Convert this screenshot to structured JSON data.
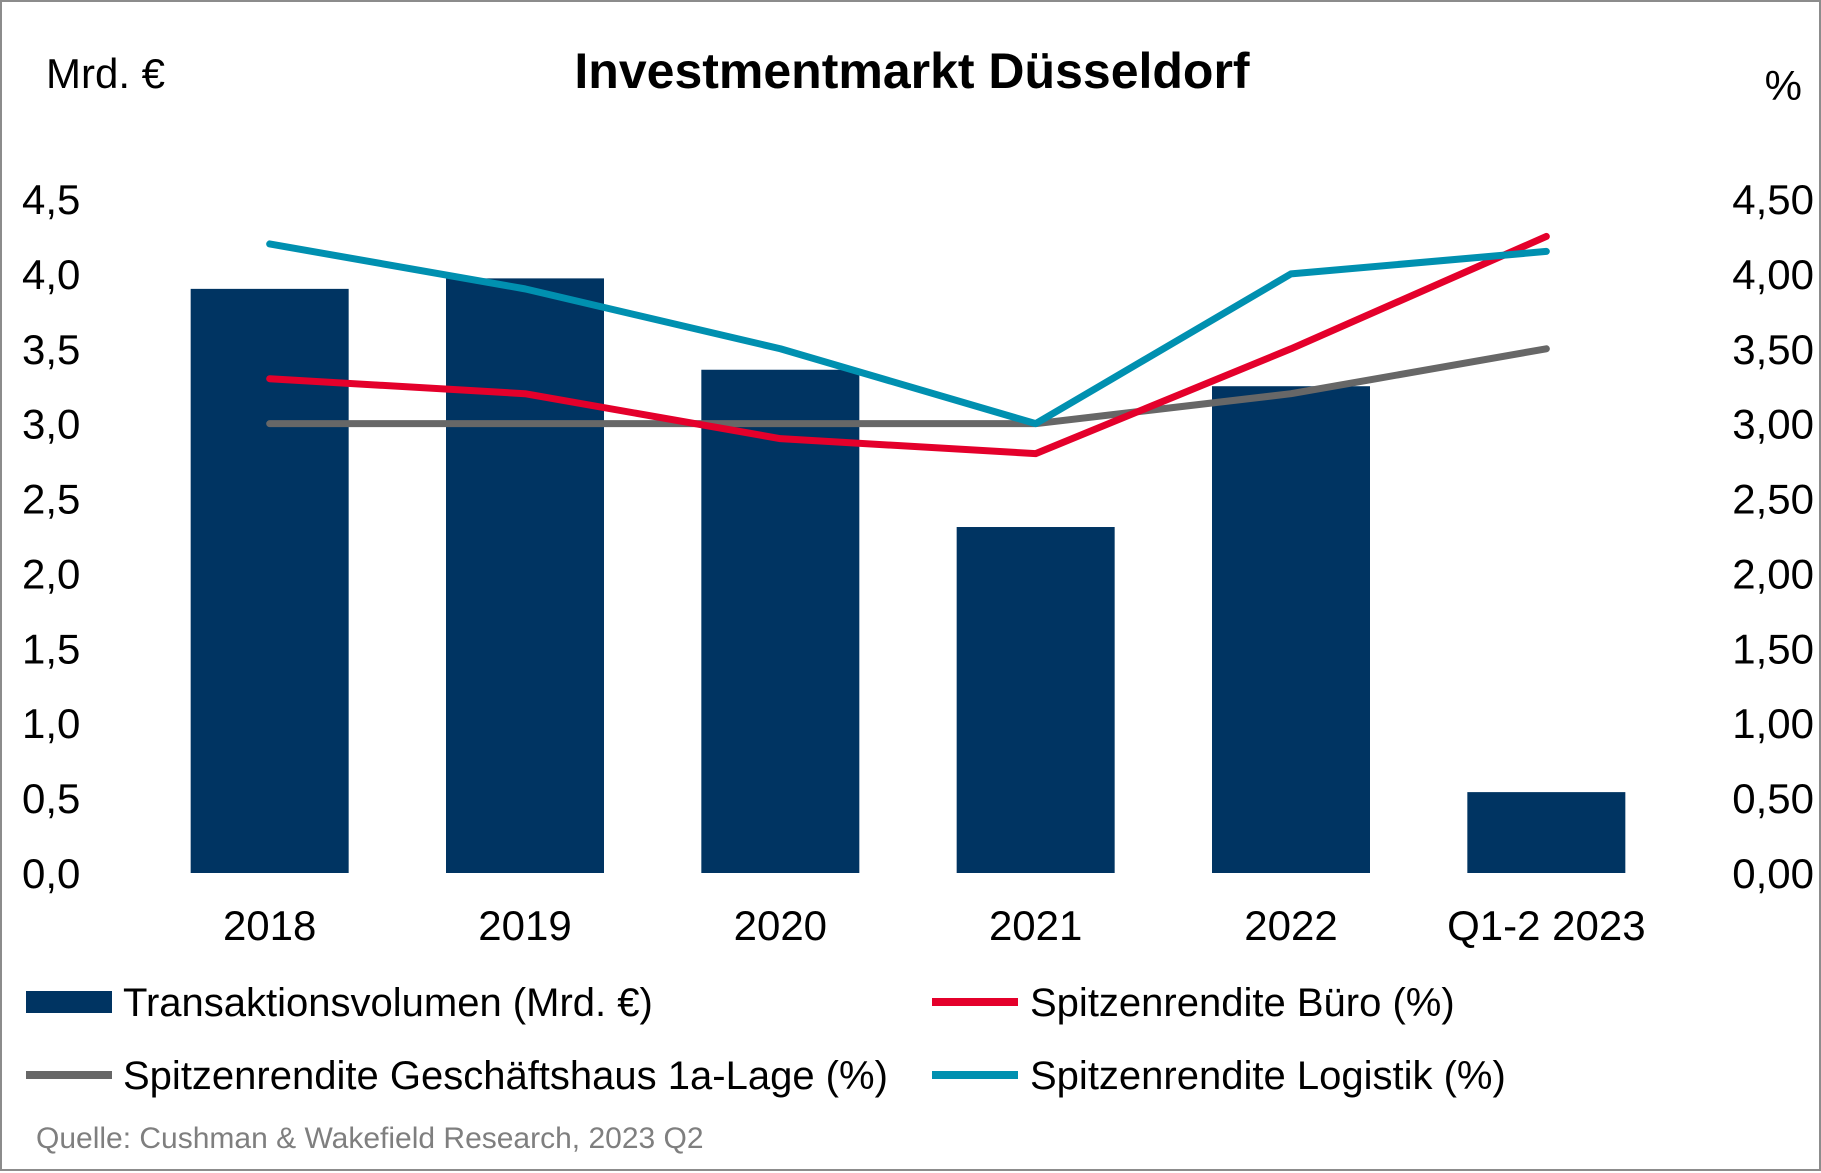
{
  "chart_data": {
    "type": "bar",
    "title": "Investmentmarkt Düsseldorf",
    "y_left_unit": "Mrd. €",
    "y_right_unit": "%",
    "categories": [
      "2018",
      "2019",
      "2020",
      "2021",
      "2022",
      "Q1-2 2023"
    ],
    "y_left_ticks": [
      "0,0",
      "0,5",
      "1,0",
      "1,5",
      "2,0",
      "2,5",
      "3,0",
      "3,5",
      "4,0",
      "4,5"
    ],
    "y_right_ticks": [
      "0,00",
      "0,50",
      "1,00",
      "1,50",
      "2,00",
      "2,50",
      "3,00",
      "3,50",
      "4,00",
      "4,50"
    ],
    "ylim_left": [
      0,
      4.5
    ],
    "ylim_right": [
      0,
      4.5
    ],
    "bars": {
      "name": "Transaktionsvolumen (Mrd. €)",
      "color": "#003462",
      "values": [
        3.9,
        3.97,
        3.36,
        2.31,
        3.25,
        0.54
      ]
    },
    "series": [
      {
        "name": "Spitzenrendite Büro (%)",
        "color": "#e4002b",
        "values": [
          3.3,
          3.2,
          2.9,
          2.8,
          3.5,
          4.25
        ]
      },
      {
        "name": "Spitzenrendite Geschäftshaus 1a-Lage (%)",
        "color": "#676767",
        "values": [
          3.0,
          3.0,
          3.0,
          3.0,
          3.2,
          3.5
        ]
      },
      {
        "name": "Spitzenrendite Logistik (%)",
        "color": "#0090b0",
        "values": [
          4.2,
          3.9,
          3.5,
          3.0,
          4.0,
          4.15
        ]
      }
    ],
    "source": "Quelle: Cushman & Wakefield Research, 2023 Q2"
  }
}
